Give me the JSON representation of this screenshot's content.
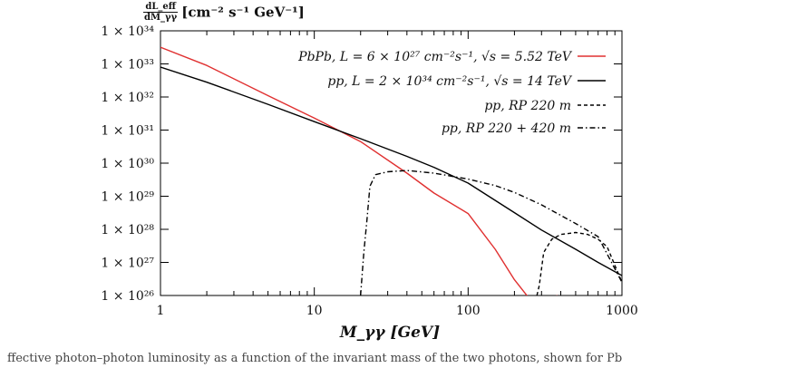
{
  "chart_data": {
    "type": "line",
    "xlabel": "M_γγ [GeV]",
    "ylabel": {
      "numerator": "dL_eff",
      "denominator": "dM_γγ",
      "units": "[cm⁻² s⁻¹ GeV⁻¹]"
    },
    "x_scale": "log",
    "y_scale": "log",
    "xlim": [
      1,
      1000
    ],
    "ylim": [
      1e+26,
      1e+34
    ],
    "x_ticks": [
      1,
      10,
      100,
      1000
    ],
    "x_tick_labels": [
      "1",
      "10",
      "100",
      "1000"
    ],
    "y_ticks": [
      1e+26,
      1e+27,
      1e+28,
      1e+29,
      1e+30,
      1e+31,
      1e+32,
      1e+33,
      1e+34
    ],
    "y_tick_labels": [
      "1 × 10²⁶",
      "1 × 10²⁷",
      "1 × 10²⁸",
      "1 × 10²⁹",
      "1 × 10³⁰",
      "1 × 10³¹",
      "1 × 10³²",
      "1 × 10³³",
      "1 × 10³⁴"
    ],
    "legend_position": "top-right",
    "series": [
      {
        "name": "PbPb, L = 6 × 10²⁷ cm⁻²s⁻¹, √s = 5.52 TeV",
        "color": "#e03030",
        "style": "solid",
        "x": [
          1,
          2,
          5,
          10,
          20,
          40,
          60,
          100,
          150,
          200,
          250,
          300,
          350,
          380
        ],
        "y": [
          3.2e+33,
          9e+32,
          1.1e+32,
          2.3e+31,
          4.5e+30,
          5e+29,
          1.25e+29,
          3e+28,
          2.5e+27,
          3e+26,
          8e+25,
          8e+25,
          8e+25,
          1e+26
        ]
      },
      {
        "name": "pp, L = 2 × 10³⁴ cm⁻²s⁻¹, √s = 14 TeV",
        "color": "#000000",
        "style": "solid",
        "x": [
          1,
          2,
          5,
          10,
          20,
          40,
          60,
          100,
          200,
          300,
          500,
          700,
          1000
        ],
        "y": [
          8e+32,
          2.8e+32,
          6e+31,
          1.8e+31,
          5.5e+30,
          1.6e+30,
          7.5e+29,
          2.5e+29,
          3.2e+28,
          9.5e+27,
          2.5e+27,
          1e+27,
          4e+26
        ]
      },
      {
        "name": "pp, RP 220 m",
        "color": "#000000",
        "style": "dashed",
        "x": [
          280,
          290,
          310,
          350,
          400,
          500,
          600,
          700,
          800,
          1000
        ],
        "y": [
          1e+26,
          2e+26,
          2e+27,
          5e+27,
          7e+27,
          8e+27,
          7e+27,
          5e+27,
          3e+27,
          2.5e+26
        ]
      },
      {
        "name": "pp, RP 220 + 420 m",
        "color": "#000000",
        "style": "dashdot",
        "x": [
          20,
          21,
          22,
          23,
          25,
          30,
          40,
          60,
          100,
          150,
          200,
          300,
          500,
          700,
          1000
        ],
        "y": [
          1e+26,
          2e+27,
          2e+28,
          2e+29,
          4.5e+29,
          5.5e+29,
          6e+29,
          5e+29,
          3.3e+29,
          2.1e+29,
          1.3e+29,
          5.5e+28,
          1.5e+28,
          6e+27,
          2.5e+26
        ]
      }
    ]
  },
  "caption_fragment": "ffective photon–photon luminosity as a function of the invariant mass of the two photons, shown for Pb"
}
